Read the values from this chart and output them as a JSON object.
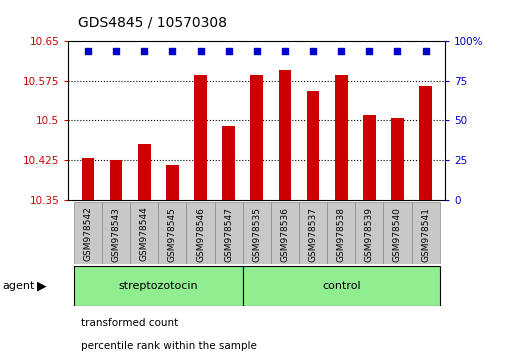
{
  "title": "GDS4845 / 10570308",
  "samples": [
    "GSM978542",
    "GSM978543",
    "GSM978544",
    "GSM978545",
    "GSM978546",
    "GSM978547",
    "GSM978535",
    "GSM978536",
    "GSM978537",
    "GSM978538",
    "GSM978539",
    "GSM978540",
    "GSM978541"
  ],
  "bar_values": [
    10.43,
    10.425,
    10.455,
    10.415,
    10.585,
    10.49,
    10.585,
    10.595,
    10.555,
    10.585,
    10.51,
    10.505,
    10.565
  ],
  "percentile_values": [
    99,
    99,
    99,
    99,
    99,
    99,
    99,
    99,
    99,
    99,
    99,
    99,
    99
  ],
  "bar_color": "#cc0000",
  "percentile_color": "#0000cc",
  "ylim_left": [
    10.35,
    10.65
  ],
  "ylim_right": [
    0,
    100
  ],
  "yticks_left": [
    10.35,
    10.425,
    10.5,
    10.575,
    10.65
  ],
  "ytick_labels_left": [
    "10.35",
    "10.425",
    "10.5",
    "10.575",
    "10.65"
  ],
  "yticks_right": [
    0,
    25,
    50,
    75,
    100
  ],
  "ytick_labels_right": [
    "0",
    "25",
    "50",
    "75",
    "100%"
  ],
  "group_streptozotocin": {
    "label": "streptozotocin",
    "start": 0,
    "end": 5
  },
  "group_control": {
    "label": "control",
    "start": 6,
    "end": 12
  },
  "group_color": "#90ee90",
  "group_border_color": "#000000",
  "agent_label": "agent",
  "legend_items": [
    {
      "label": "transformed count",
      "color": "#cc0000"
    },
    {
      "label": "percentile rank within the sample",
      "color": "#0000cc"
    }
  ],
  "bg_color": "#ffffff",
  "plot_bg_color": "#ffffff",
  "grid_color": "#000000",
  "xlabel_bg": "#c8c8c8",
  "xlabel_border": "#888888",
  "title_fontsize": 10,
  "tick_fontsize": 7.5,
  "sample_fontsize": 6.5,
  "legend_fontsize": 7.5,
  "group_fontsize": 8,
  "agent_fontsize": 8
}
